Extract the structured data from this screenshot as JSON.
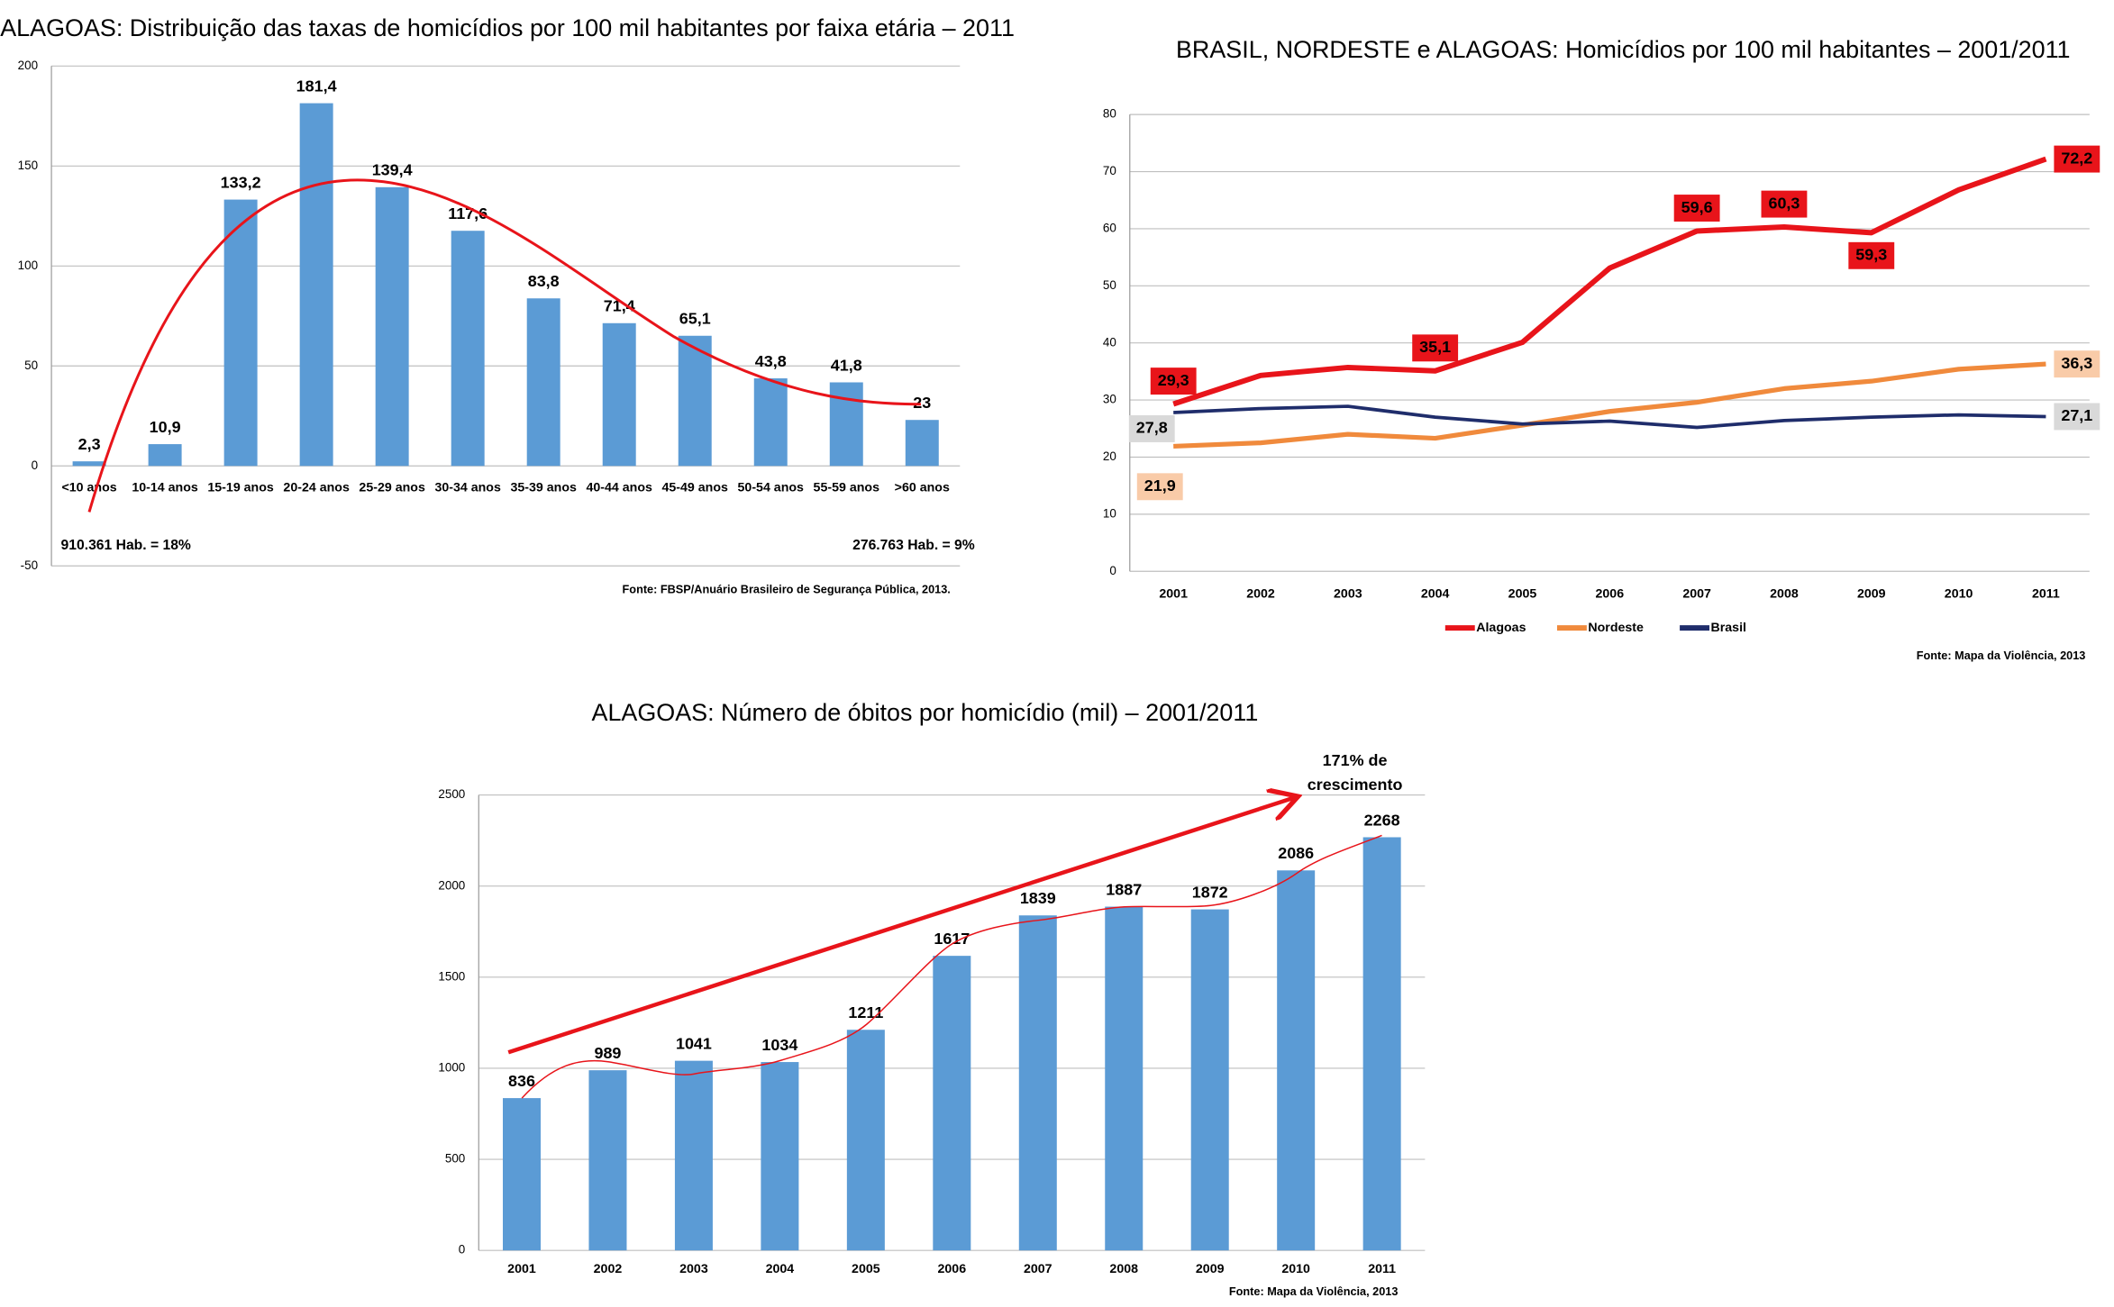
{
  "chart_data": [
    {
      "type": "bar",
      "title": "ALAGOAS: Distribuição das taxas de homicídios por 100 mil habitantes por faixa etária – 2011",
      "categories": [
        "<10 anos",
        "10-14 anos",
        "15-19 anos",
        "20-24 anos",
        "25-29 anos",
        "30-34 anos",
        "35-39 anos",
        "40-44 anos",
        "45-49 anos",
        "50-54 anos",
        "55-59 anos",
        ">60 anos"
      ],
      "values": [
        2.3,
        10.9,
        133.2,
        181.4,
        139.4,
        117.6,
        83.8,
        71.4,
        65.1,
        43.8,
        41.8,
        23
      ],
      "value_labels": [
        "2,3",
        "10,9",
        "133,2",
        "181,4",
        "139,4",
        "117,6",
        "83,8",
        "71,4",
        "65,1",
        "43,8",
        "41,8",
        "23"
      ],
      "color": "#5b9bd5",
      "ylim": [
        -50,
        200
      ],
      "yticks": [
        -50,
        0,
        50,
        100,
        150,
        200
      ],
      "grid": true,
      "annotations": [
        "910.361 Hab. = 18%",
        "276.763 Hab. =  9%"
      ],
      "source": "Fonte: FBSP/Anuário Brasileiro de Segurança Pública, 2013."
    },
    {
      "type": "line",
      "title": "BRASIL, NORDESTE e ALAGOAS: Homicídios por 100 mil habitantes – 2001/2011",
      "categories": [
        "2001",
        "2002",
        "2003",
        "2004",
        "2005",
        "2006",
        "2007",
        "2008",
        "2009",
        "2010",
        "2011"
      ],
      "series": [
        {
          "name": "Alagoas",
          "color": "#e8141a",
          "values": [
            29.3,
            34.3,
            35.7,
            35.1,
            40.1,
            53.1,
            59.6,
            60.3,
            59.3,
            66.8,
            72.2
          ],
          "value_labels": [
            "29,3",
            null,
            null,
            "35,1",
            null,
            null,
            "59,6",
            "60,3",
            "59,3",
            null,
            "72,2"
          ]
        },
        {
          "name": "Nordeste",
          "color": "#f08a3c",
          "values": [
            21.9,
            22.5,
            24.0,
            23.3,
            25.6,
            28.0,
            29.6,
            32.0,
            33.3,
            35.4,
            36.3
          ],
          "value_labels": [
            "21,9",
            null,
            null,
            null,
            null,
            null,
            null,
            null,
            null,
            null,
            "36,3"
          ]
        },
        {
          "name": "Brasil",
          "color": "#1f2d6b",
          "values": [
            27.8,
            28.5,
            28.9,
            27.0,
            25.8,
            26.3,
            25.2,
            26.4,
            27.0,
            27.4,
            27.1
          ],
          "value_labels": [
            "27,8",
            null,
            null,
            null,
            null,
            null,
            null,
            null,
            null,
            null,
            "27,1"
          ]
        }
      ],
      "ylim": [
        0,
        80
      ],
      "yticks": [
        0,
        10,
        20,
        30,
        40,
        50,
        60,
        70,
        80
      ],
      "grid": true,
      "legend": "bottom",
      "source": "Fonte: Mapa da Violência, 2013"
    },
    {
      "type": "bar",
      "title": "ALAGOAS: Número de óbitos por homicídio (mil) – 2001/2011",
      "categories": [
        "2001",
        "2002",
        "2003",
        "2004",
        "2005",
        "2006",
        "2007",
        "2008",
        "2009",
        "2010",
        "2011"
      ],
      "values": [
        836,
        989,
        1041,
        1034,
        1211,
        1617,
        1839,
        1887,
        1872,
        2086,
        2268
      ],
      "color": "#5b9bd5",
      "ylim": [
        0,
        2500
      ],
      "yticks": [
        0,
        500,
        1000,
        1500,
        2000,
        2500
      ],
      "grid": true,
      "annotations": [
        "171% de",
        "crescimento"
      ],
      "source": "Fonte: Mapa da Violência, 2013"
    }
  ]
}
